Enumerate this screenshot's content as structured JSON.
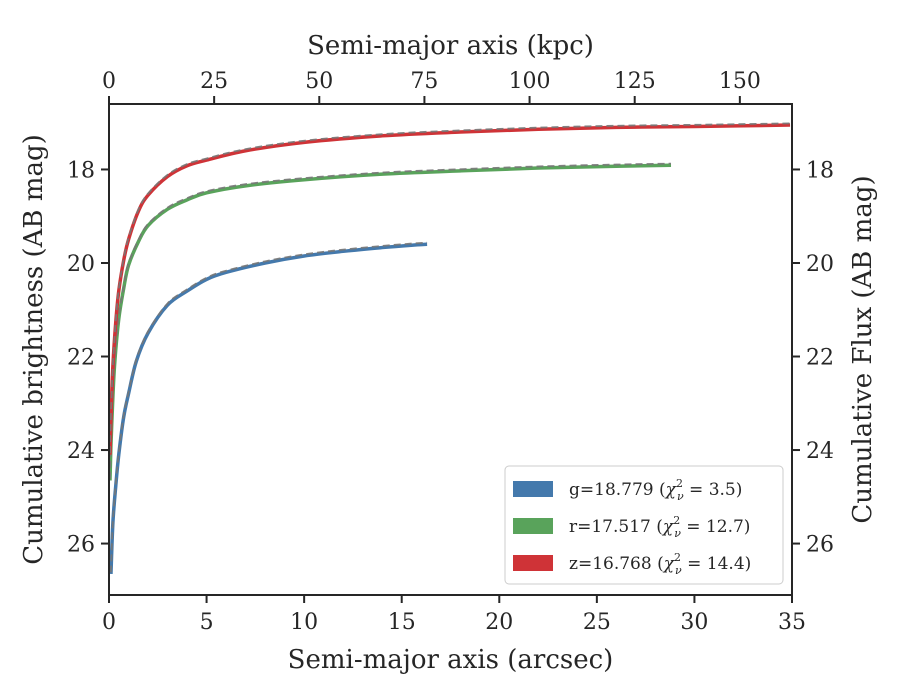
{
  "chart_data": {
    "type": "line",
    "xlabel": "Semi-major axis (arcsec)",
    "x2label": "Semi-major axis (kpc)",
    "ylabel": "Cumulative brightness (AB mag)",
    "y2label": "Cumulative Flux (AB mag)",
    "xlim": [
      0,
      35
    ],
    "x2lim": [
      0,
      162.4
    ],
    "ylim": [
      27.1,
      16.6
    ],
    "y_inverted": true,
    "xticks": [
      0,
      5,
      10,
      15,
      20,
      25,
      30,
      35
    ],
    "x2ticks": [
      0,
      25,
      50,
      75,
      100,
      125,
      150
    ],
    "yticks": [
      18,
      20,
      22,
      24,
      26
    ],
    "grid": false,
    "legend_position": "lower right",
    "model_line_style": "dashed gray",
    "series": [
      {
        "name": "g=18.779 (χ²_ν = 3.5)",
        "legend": {
          "band": "g",
          "mag": "18.779",
          "chi2": "3.5"
        },
        "color": "#4479ac",
        "x": [
          0.1,
          0.2,
          0.35,
          0.5,
          0.75,
          1.0,
          1.4,
          2.0,
          3.0,
          4.0,
          5.0,
          6.0,
          8.0,
          10.0,
          12.0,
          14.0,
          15.5,
          16.3
        ],
        "y": [
          26.65,
          25.55,
          24.75,
          24.1,
          23.3,
          22.8,
          22.1,
          21.5,
          20.9,
          20.6,
          20.35,
          20.2,
          20.0,
          19.85,
          19.75,
          19.67,
          19.62,
          19.6
        ]
      },
      {
        "name": "r=17.517 (χ²_ν = 12.7)",
        "legend": {
          "band": "r",
          "mag": "17.517",
          "chi2": "12.7"
        },
        "color": "#59a35b",
        "x": [
          0.05,
          0.1,
          0.2,
          0.3,
          0.5,
          0.75,
          1.0,
          1.5,
          2.0,
          3.0,
          4.0,
          5.0,
          7.0,
          10.0,
          14.0,
          18.0,
          22.0,
          26.0,
          28.8
        ],
        "y": [
          24.65,
          23.9,
          22.85,
          22.1,
          21.2,
          20.55,
          20.05,
          19.55,
          19.2,
          18.85,
          18.65,
          18.5,
          18.35,
          18.22,
          18.1,
          18.03,
          17.97,
          17.93,
          17.91
        ]
      },
      {
        "name": "z=16.768 (χ²_ν = 14.4)",
        "legend": {
          "band": "z",
          "mag": "16.768",
          "chi2": "14.4"
        },
        "color": "#cf3337",
        "x": [
          0.05,
          0.1,
          0.2,
          0.35,
          0.5,
          0.75,
          1.0,
          1.5,
          2.0,
          3.0,
          4.0,
          5.0,
          7.0,
          10.0,
          14.0,
          18.0,
          22.0,
          26.0,
          30.0,
          34.9
        ],
        "y": [
          24.1,
          23.3,
          22.2,
          21.25,
          20.6,
          19.95,
          19.5,
          18.9,
          18.55,
          18.15,
          17.92,
          17.8,
          17.6,
          17.42,
          17.28,
          17.2,
          17.14,
          17.1,
          17.08,
          17.05
        ]
      }
    ]
  }
}
